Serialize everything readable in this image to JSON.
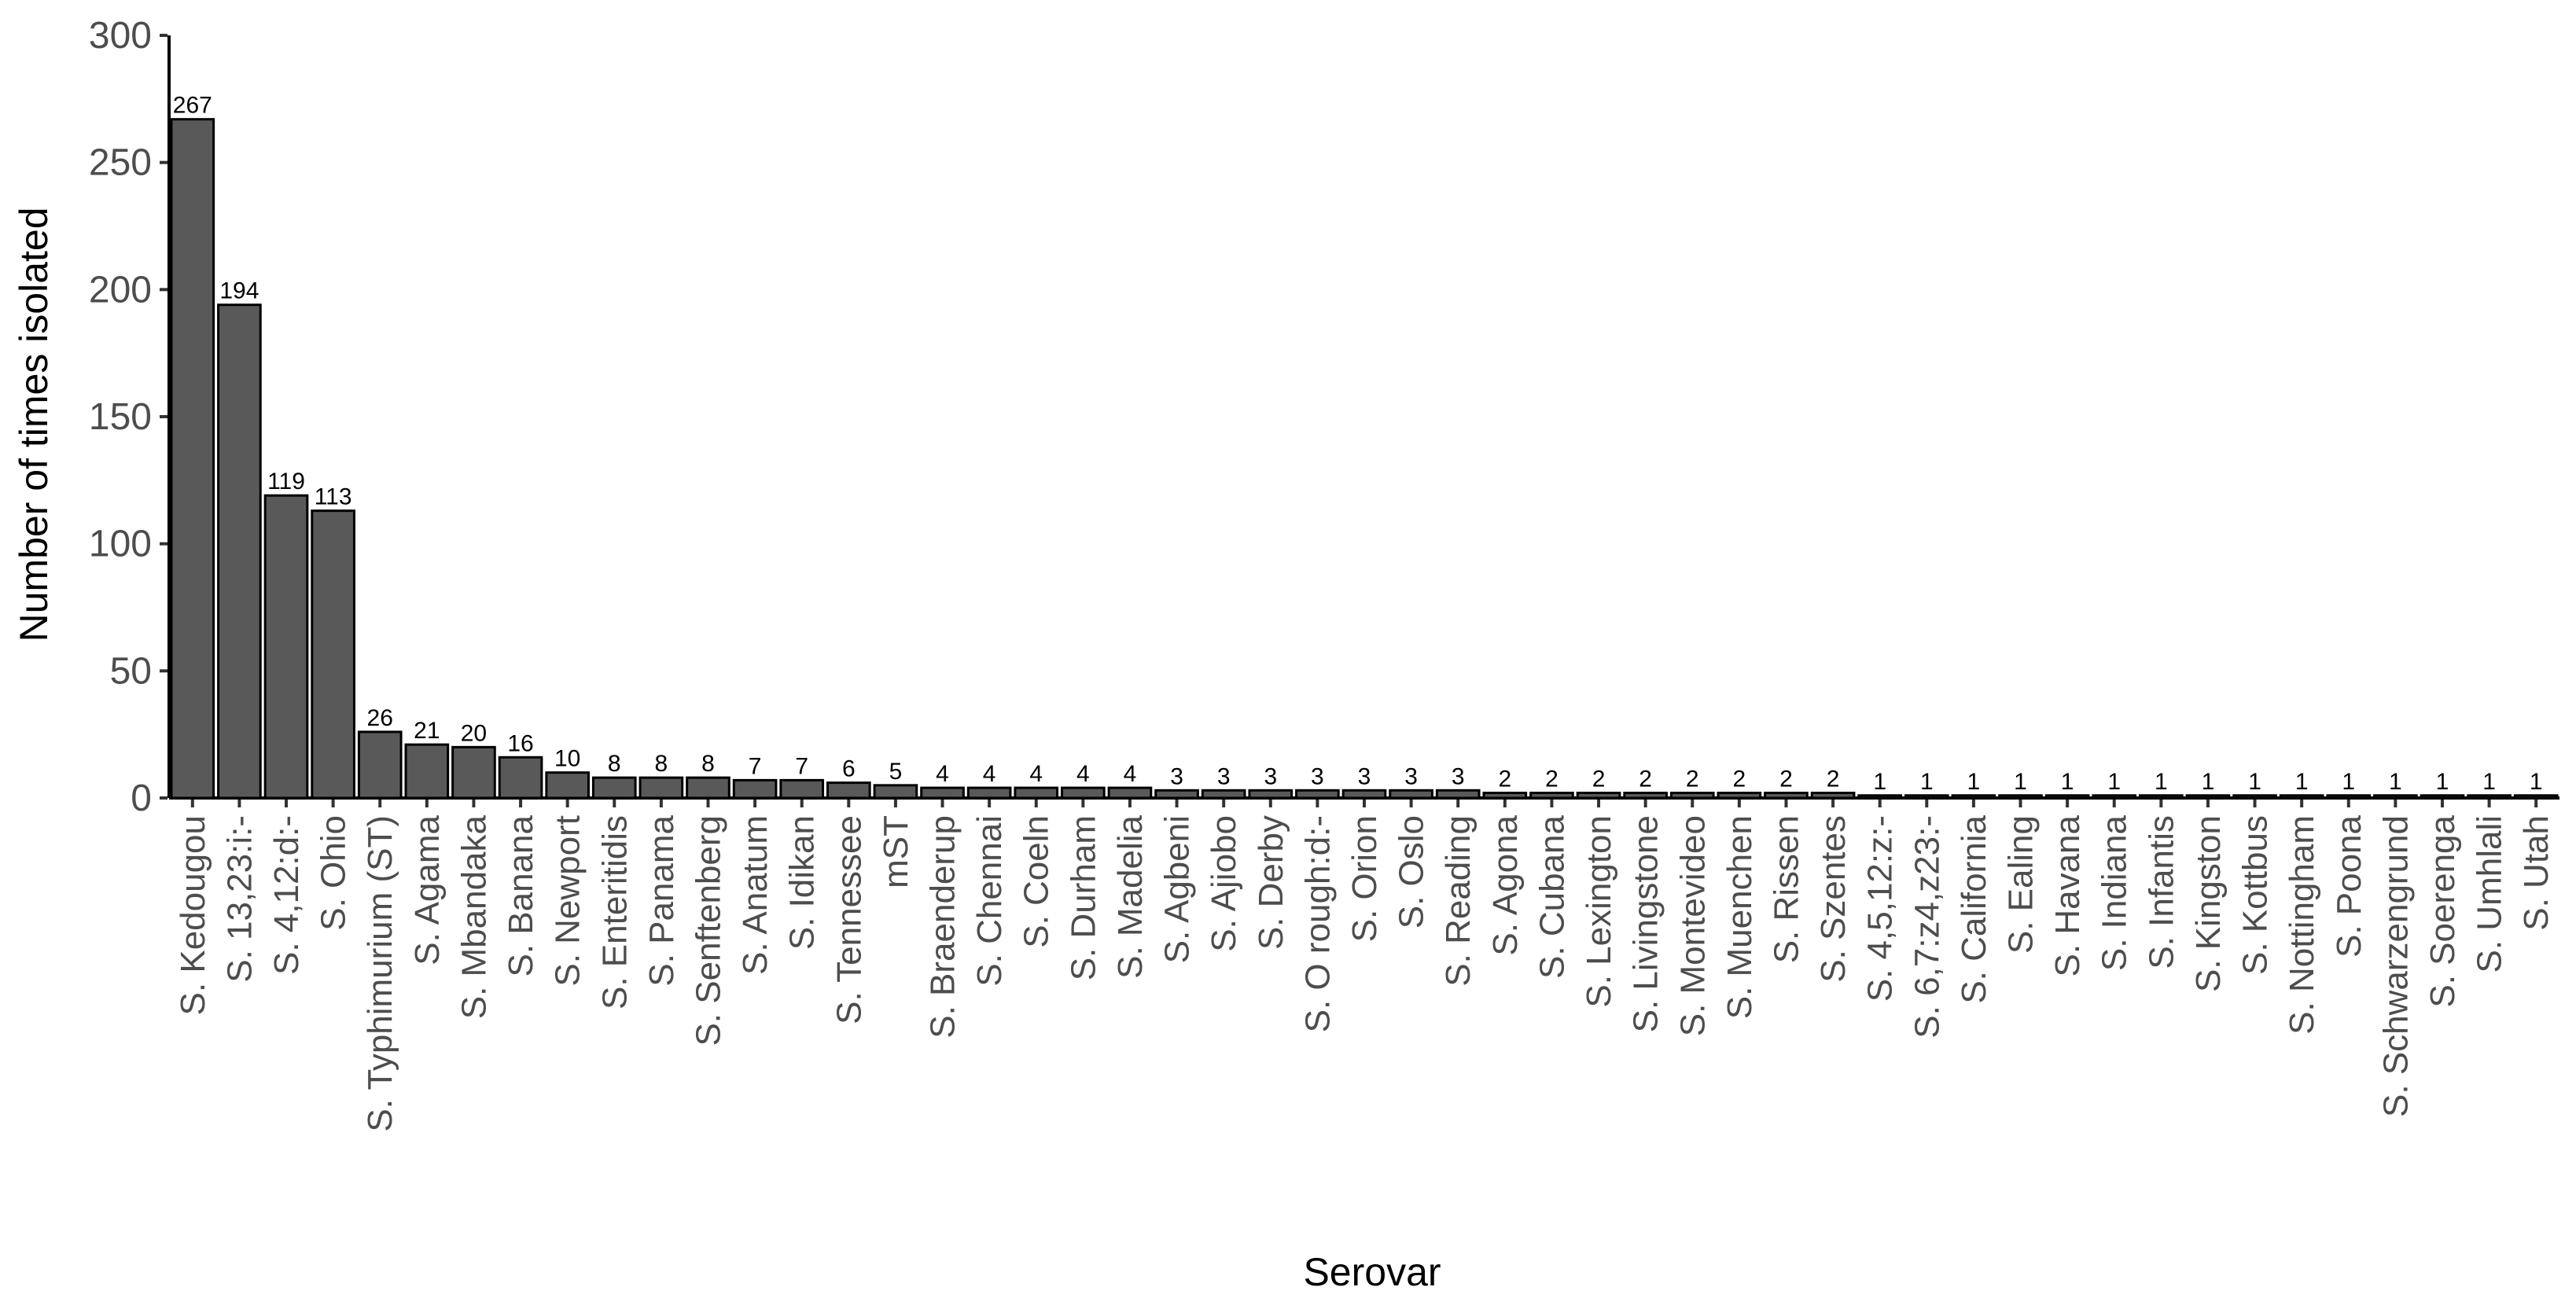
{
  "chart_data": {
    "type": "bar",
    "xlabel": "Serovar",
    "ylabel": "Number of times isolated",
    "ylim": [
      0,
      300
    ],
    "yticks": [
      0,
      50,
      100,
      150,
      200,
      250,
      300
    ],
    "grid": false,
    "bar_color": "#595959",
    "bar_edge_color": "#000000",
    "categories": [
      "S. Kedougou",
      "S. 13,23:i:-",
      "S. 4,12:d:-",
      "S. Ohio",
      "S. Typhimurium (ST)",
      "S. Agama",
      "S. Mbandaka",
      "S. Banana",
      "S. Newport",
      "S. Enteritidis",
      "S. Panama",
      "S. Senftenberg",
      "S. Anatum",
      "S. Idikan",
      "S. Tennessee",
      "mST",
      "S. Braenderup",
      "S. Chennai",
      "S. Coeln",
      "S. Durham",
      "S. Madelia",
      "S. Agbeni",
      "S. Ajiobo",
      "S. Derby",
      "S. O rough:d:-",
      "S. Orion",
      "S. Oslo",
      "S. Reading",
      "S. Agona",
      "S. Cubana",
      "S. Lexington",
      "S. Livingstone",
      "S. Montevideo",
      "S. Muenchen",
      "S. Rissen",
      "S. Szentes",
      "S. 4,5,12:z:-",
      "S. 6,7:z4,z23:-",
      "S. California",
      "S. Ealing",
      "S. Havana",
      "S. Indiana",
      "S. Infantis",
      "S. Kingston",
      "S. Kottbus",
      "S. Nottingham",
      "S. Poona",
      "S. Schwarzengrund",
      "S. Soerenga",
      "S. Umhlali",
      "S. Utah"
    ],
    "values": [
      267,
      194,
      119,
      113,
      26,
      21,
      20,
      16,
      10,
      8,
      8,
      8,
      7,
      7,
      6,
      5,
      4,
      4,
      4,
      4,
      4,
      3,
      3,
      3,
      3,
      3,
      3,
      3,
      2,
      2,
      2,
      2,
      2,
      2,
      2,
      2,
      1,
      1,
      1,
      1,
      1,
      1,
      1,
      1,
      1,
      1,
      1,
      1,
      1,
      1,
      1
    ]
  }
}
